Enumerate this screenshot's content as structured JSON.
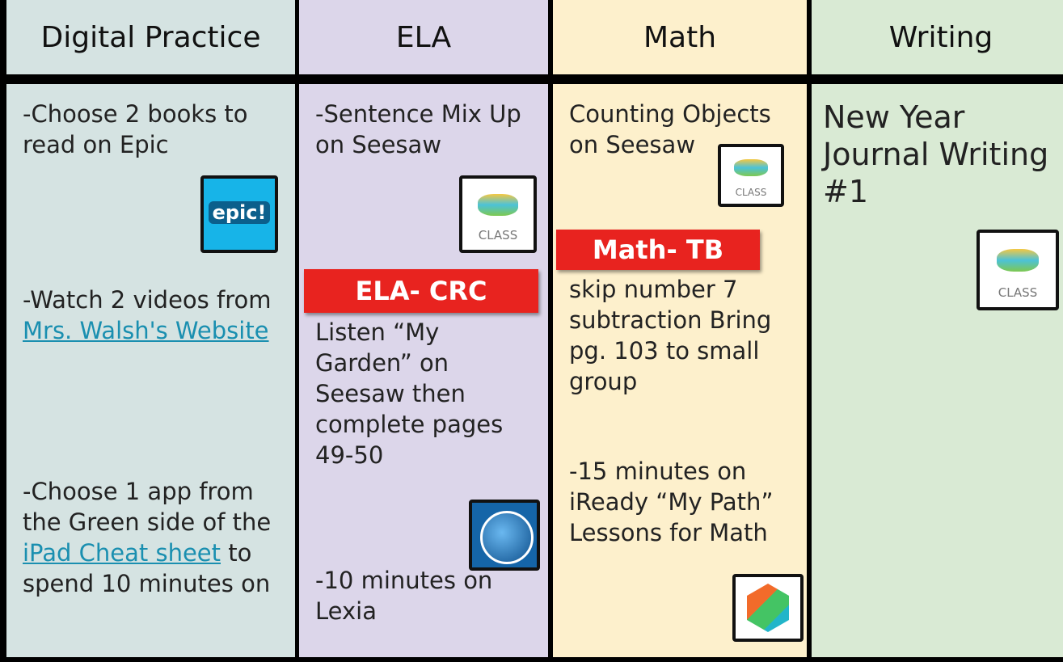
{
  "columns": [
    {
      "header": "Digital Practice",
      "blocks": [
        [
          "-Choose 2 books to read on Epic"
        ],
        [
          "-Watch 2 videos from ",
          {
            "link": "Mrs. Walsh's Website"
          }
        ],
        [
          "-Choose 1 app from the Green side of the ",
          {
            "link": "iPad Cheat sheet"
          },
          " to spend 10 minutes on"
        ]
      ]
    },
    {
      "header": "ELA",
      "blocks": [
        [
          "-Sentence Mix Up on Seesaw"
        ],
        [
          "Listen “My Garden” on Seesaw then complete pages 49-50"
        ],
        [
          "-10 minutes on Lexia"
        ]
      ]
    },
    {
      "header": "Math",
      "blocks": [
        [
          "Counting Objects on Seesaw"
        ],
        [
          "skip number 7 subtraction Bring pg. 103 to small group"
        ],
        [
          "-15 minutes on iReady “My Path” Lessons for Math"
        ]
      ]
    },
    {
      "header": "Writing",
      "blocks": [
        [
          "New Year Journal Writing #1"
        ]
      ]
    }
  ],
  "icons": [
    "epic!",
    "CLASS",
    "CLASS",
    "CLASS"
  ],
  "tags": [
    "ELA- CRC",
    "Math- TB"
  ]
}
